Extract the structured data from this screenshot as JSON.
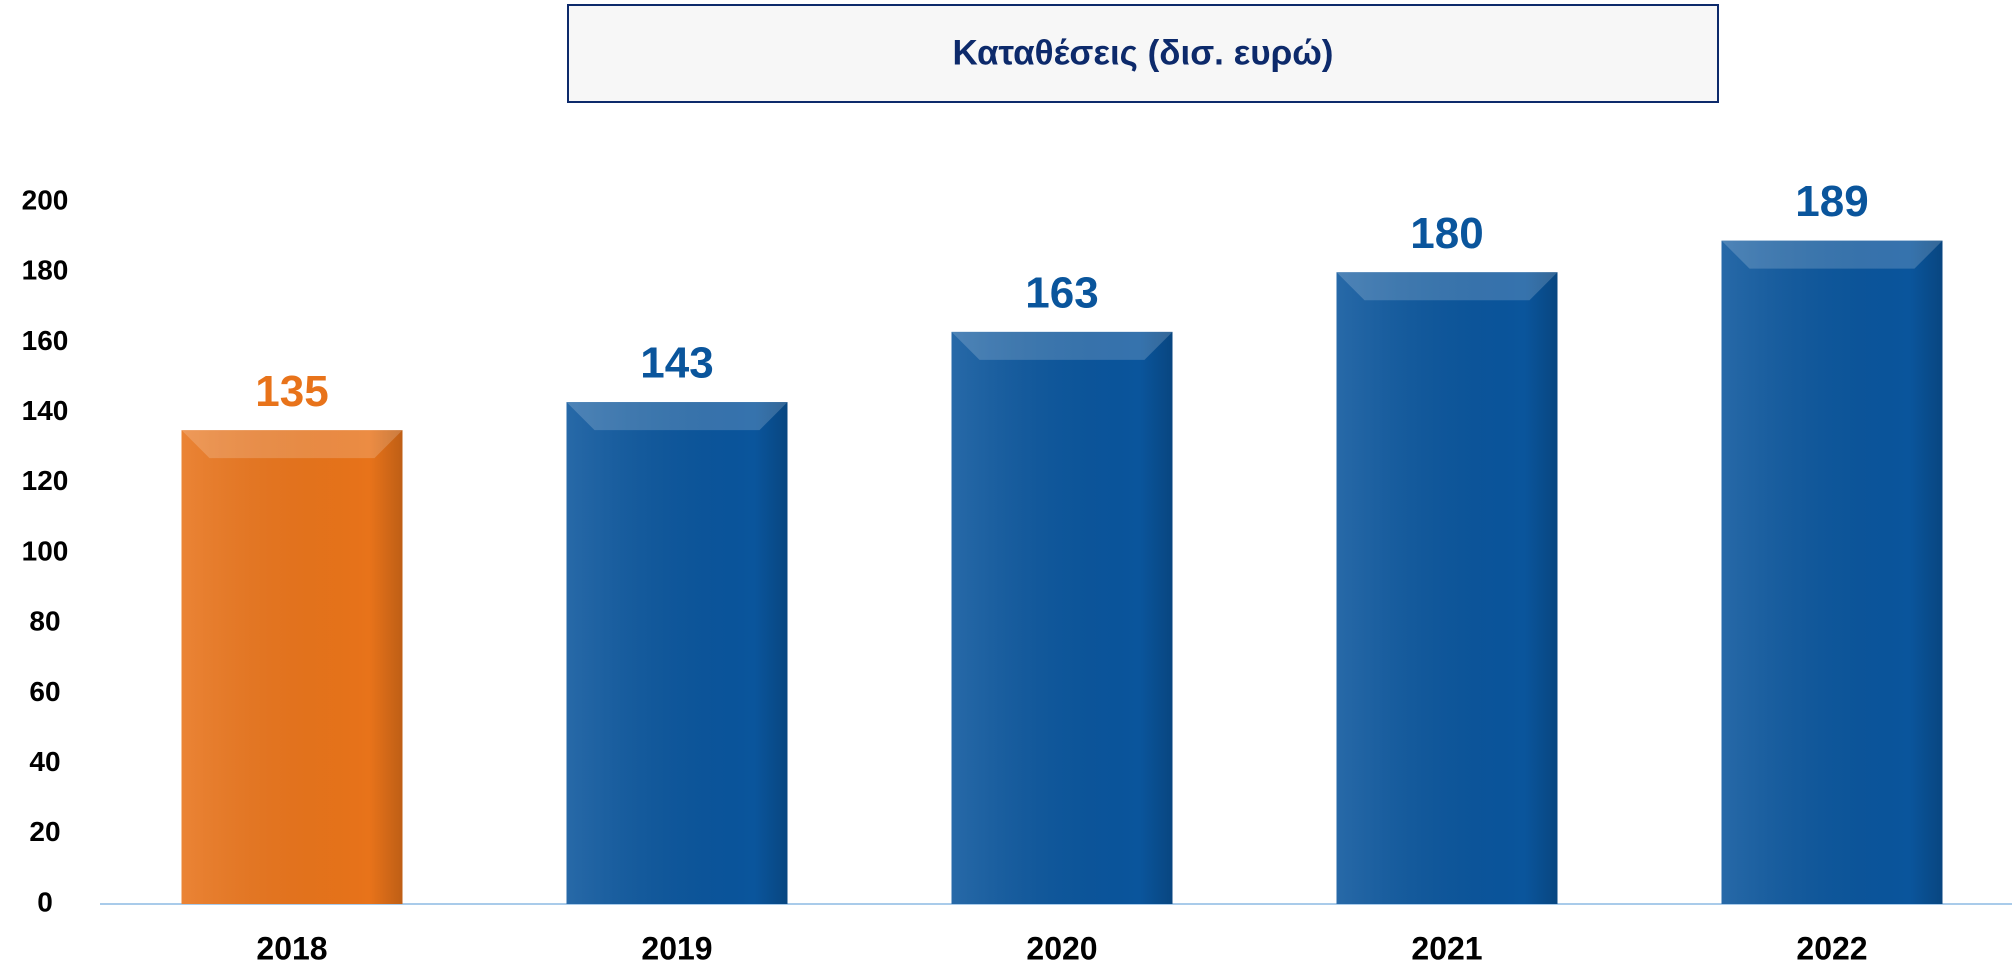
{
  "chart_data": {
    "type": "bar",
    "title": "Καταθέσεις (δισ. ευρώ)",
    "categories": [
      "2018",
      "2019",
      "2020",
      "2021",
      "2022"
    ],
    "values": [
      135,
      143,
      163,
      180,
      189
    ],
    "colors": [
      "#e8731a",
      "#0a559c",
      "#0a559c",
      "#0a559c",
      "#0a559c"
    ],
    "ylim": [
      0,
      200
    ],
    "yticks": [
      0,
      20,
      40,
      60,
      80,
      100,
      120,
      140,
      160,
      180,
      200
    ],
    "grid": false
  }
}
